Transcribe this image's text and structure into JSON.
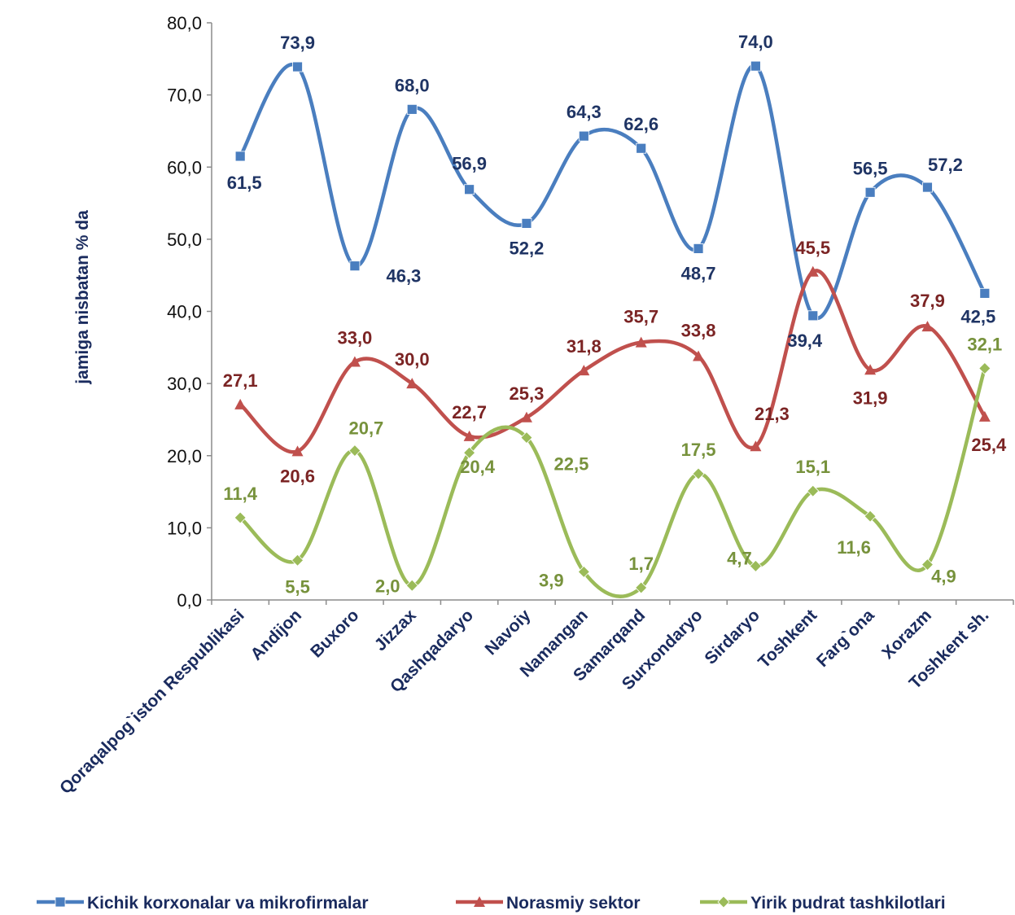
{
  "chart_data": {
    "type": "line",
    "title": "",
    "xlabel": "",
    "ylabel": "jamiga nisbatan % da",
    "ylim": [
      0,
      80
    ],
    "yticks": [
      "0,0",
      "10,0",
      "20,0",
      "30,0",
      "40,0",
      "50,0",
      "60,0",
      "70,0",
      "80,0"
    ],
    "categories": [
      "Qoraqalpog`iston Respublikasi",
      "Andijon",
      "Buxoro",
      "Jizzax",
      "Qashqadaryo",
      "Navoiy",
      "Namangan",
      "Samarqand",
      "Surxondaryo",
      "Sirdaryo",
      "Toshkent",
      "Farg`ona",
      "Xorazm",
      "Toshkent sh."
    ],
    "legend_position": "bottom",
    "grid": false,
    "smooth": true,
    "series": [
      {
        "name": "Kichik korxonalar va mikrofirmalar",
        "color": "#4a7ebf",
        "label_color": "#1f3464",
        "marker": "square",
        "values": [
          61.5,
          73.9,
          46.3,
          68.0,
          56.9,
          52.2,
          64.3,
          62.6,
          48.7,
          74.0,
          39.4,
          56.5,
          57.2,
          42.5
        ],
        "labels": [
          "61,5",
          "73,9",
          "46,3",
          "68,0",
          "56,9",
          "52,2",
          "64,3",
          "62,6",
          "48,7",
          "74,0",
          "39,4",
          "56,5",
          "57,2",
          "42,5"
        ]
      },
      {
        "name": "Norasmiy sektor",
        "color": "#c0504d",
        "label_color": "#7b2424",
        "marker": "triangle",
        "values": [
          27.1,
          20.6,
          33.0,
          30.0,
          22.7,
          25.3,
          31.8,
          35.7,
          33.8,
          21.3,
          45.5,
          31.9,
          37.9,
          25.4
        ],
        "labels": [
          "27,1",
          "20,6",
          "33,0",
          "30,0",
          "22,7",
          "25,3",
          "31,8",
          "35,7",
          "33,8",
          "21,3",
          "45,5",
          "31,9",
          "37,9",
          "25,4"
        ]
      },
      {
        "name": "Yirik pudrat tashkilotlari",
        "color": "#9bbb59",
        "label_color": "#77923c",
        "marker": "diamond",
        "values": [
          11.4,
          5.5,
          20.7,
          2.0,
          20.4,
          22.5,
          3.9,
          1.7,
          17.5,
          4.7,
          15.1,
          11.6,
          4.9,
          32.1
        ],
        "labels": [
          "11,4",
          "5,5",
          "20,7",
          "2,0",
          "20,4",
          "22,5",
          "3,9",
          "1,7",
          "17,5",
          "4,7",
          "15,1",
          "11,6",
          "4,9",
          "32,1"
        ]
      }
    ]
  }
}
